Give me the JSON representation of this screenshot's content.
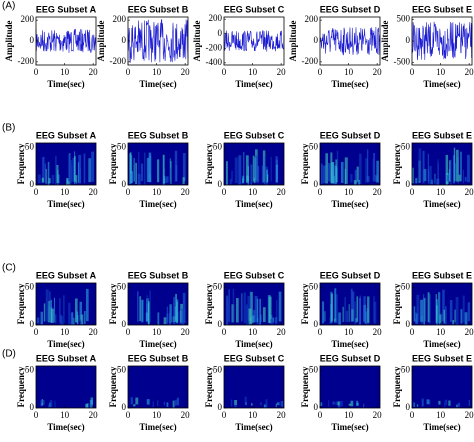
{
  "rows": [
    {
      "label": "(A)",
      "panels": [
        {
          "title": "EEG Subset A",
          "ylabel": "Amplitude",
          "xlabel": "Time(sec)",
          "xlim": [
            0,
            21
          ],
          "xticks": [
            0,
            10,
            20
          ],
          "ylim": [
            -230,
            230
          ],
          "yticks": [
            -200,
            0,
            200
          ]
        },
        {
          "title": "EEG Subset B",
          "ylabel": "Amplitude",
          "xlabel": "Time(sec)",
          "xlim": [
            0,
            21
          ],
          "xticks": [
            0,
            10,
            20
          ],
          "ylim": [
            -230,
            230
          ],
          "yticks": [
            -200,
            0,
            200
          ]
        },
        {
          "title": "EEG Subset C",
          "ylabel": "Amplitude",
          "xlabel": "Time(sec)",
          "xlim": [
            0,
            21
          ],
          "xticks": [
            0,
            10,
            20
          ],
          "ylim": [
            -430,
            230
          ],
          "yticks": [
            -400,
            -200,
            0,
            200
          ]
        },
        {
          "title": "EEG Subset D",
          "ylabel": "Amplitude",
          "xlabel": "Time(sec)",
          "xlim": [
            0,
            21
          ],
          "xticks": [
            0,
            10,
            20
          ],
          "ylim": [
            -230,
            230
          ],
          "yticks": [
            -200,
            0,
            200
          ]
        },
        {
          "title": "EEG Subset E",
          "ylabel": "Amplitude",
          "xlabel": "Time(sec)",
          "xlim": [
            0,
            21
          ],
          "xticks": [
            0,
            10,
            20
          ],
          "ylim": [
            -560,
            560
          ],
          "yticks": [
            -500,
            0,
            500
          ]
        }
      ]
    },
    {
      "label": "(B)",
      "panels": [
        {
          "title": "EEG Subset A",
          "ylabel": "Frequency",
          "xlabel": "Time(sec)",
          "xlim": [
            0,
            21
          ],
          "xticks": [
            0,
            10,
            20
          ],
          "ylim": [
            0,
            56
          ],
          "yticks": [
            0,
            50
          ]
        },
        {
          "title": "EEG Subset B",
          "ylabel": "Frequency",
          "xlabel": "Time(sec)",
          "xlim": [
            0,
            21
          ],
          "xticks": [
            0,
            10,
            20
          ],
          "ylim": [
            0,
            56
          ],
          "yticks": [
            0,
            50
          ]
        },
        {
          "title": "EEG Subset C",
          "ylabel": "Frequency",
          "xlabel": "Time(sec)",
          "xlim": [
            0,
            21
          ],
          "xticks": [
            0,
            10,
            20
          ],
          "ylim": [
            0,
            56
          ],
          "yticks": [
            0,
            50
          ]
        },
        {
          "title": "EEG Subset D",
          "ylabel": "Frequency",
          "xlabel": "Time(sec)",
          "xlim": [
            0,
            21
          ],
          "xticks": [
            0,
            10,
            20
          ],
          "ylim": [
            0,
            56
          ],
          "yticks": [
            0,
            50
          ]
        },
        {
          "title": "EEG Subset E",
          "ylabel": "Frequency",
          "xlabel": "Time(sec)",
          "xlim": [
            0,
            21
          ],
          "xticks": [
            0,
            10,
            20
          ],
          "ylim": [
            0,
            56
          ],
          "yticks": [
            0,
            50
          ]
        }
      ]
    },
    {
      "label": "(C)",
      "panels": [
        {
          "title": "EEG Subset A",
          "ylabel": "Frequency",
          "xlabel": "Time(sec)",
          "xlim": [
            0,
            21
          ],
          "xticks": [
            0,
            10,
            20
          ],
          "ylim": [
            0,
            56
          ],
          "yticks": [
            0,
            50
          ]
        },
        {
          "title": "EEG Subset B",
          "ylabel": "Frequency",
          "xlabel": "Time(sec)",
          "xlim": [
            0,
            21
          ],
          "xticks": [
            0,
            10,
            20
          ],
          "ylim": [
            0,
            56
          ],
          "yticks": [
            0,
            50
          ]
        },
        {
          "title": "EEG Subset C",
          "ylabel": "Frequency",
          "xlabel": "Time(sec)",
          "xlim": [
            0,
            21
          ],
          "xticks": [
            0,
            10,
            20
          ],
          "ylim": [
            0,
            56
          ],
          "yticks": [
            0,
            50
          ]
        },
        {
          "title": "EEG Subset D",
          "ylabel": "Frequency",
          "xlabel": "Time(sec)",
          "xlim": [
            0,
            21
          ],
          "xticks": [
            0,
            10,
            20
          ],
          "ylim": [
            0,
            56
          ],
          "yticks": [
            0,
            50
          ]
        },
        {
          "title": "EEG Subset E",
          "ylabel": "Frequency",
          "xlabel": "Time(sec)",
          "xlim": [
            0,
            21
          ],
          "xticks": [
            0,
            10,
            20
          ],
          "ylim": [
            0,
            56
          ],
          "yticks": [
            0,
            50
          ]
        }
      ]
    },
    {
      "label": "(D)",
      "panels": [
        {
          "title": "EEG Subset A",
          "ylabel": "Frequency",
          "xlabel": "Time(sec)",
          "xlim": [
            0,
            21
          ],
          "xticks": [
            0,
            10,
            20
          ],
          "ylim": [
            0,
            56
          ],
          "yticks": [
            0,
            50
          ]
        },
        {
          "title": "EEG Subset B",
          "ylabel": "Frequency",
          "xlabel": "Time(sec)",
          "xlim": [
            0,
            21
          ],
          "xticks": [
            0,
            10,
            20
          ],
          "ylim": [
            0,
            56
          ],
          "yticks": [
            0,
            50
          ]
        },
        {
          "title": "EEG Subset C",
          "ylabel": "Frequency",
          "xlabel": "Time(sec)",
          "xlim": [
            0,
            21
          ],
          "xticks": [
            0,
            10,
            20
          ],
          "ylim": [
            0,
            56
          ],
          "yticks": [
            0,
            50
          ]
        },
        {
          "title": "EEG Subset D",
          "ylabel": "Frequency",
          "xlabel": "Time(sec)",
          "xlim": [
            0,
            21
          ],
          "xticks": [
            0,
            10,
            20
          ],
          "ylim": [
            0,
            56
          ],
          "yticks": [
            0,
            50
          ]
        },
        {
          "title": "EEG Subset E",
          "ylabel": "Frequency",
          "xlabel": "Time(sec)",
          "xlim": [
            0,
            21
          ],
          "xticks": [
            0,
            10,
            20
          ],
          "ylim": [
            0,
            56
          ],
          "yticks": [
            0,
            50
          ]
        }
      ]
    }
  ]
}
